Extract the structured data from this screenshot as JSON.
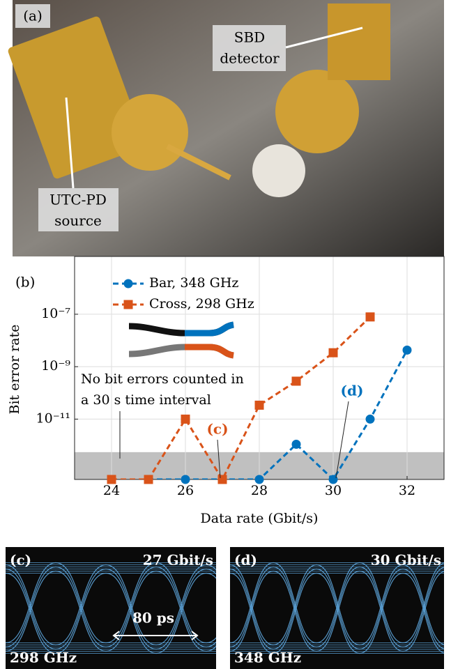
{
  "photo": {
    "label": "(a)",
    "detector_label": [
      "SBD",
      "detector"
    ],
    "source_label": [
      "UTC-PD",
      "source"
    ]
  },
  "chart_data": {
    "type": "line",
    "panel_label": "(b)",
    "x_label": "Data rate (Gbit/s)",
    "y_label": "Bit error rate",
    "xlim": [
      23,
      33
    ],
    "xticks": [
      24,
      26,
      28,
      30,
      32
    ],
    "ylim": [
      5e-14,
      1.6e-05
    ],
    "log_y": true,
    "yticks": [
      {
        "value": 1e-07,
        "label": "10⁻⁷"
      },
      {
        "value": 1e-09,
        "label": "10⁻⁹"
      },
      {
        "value": 1e-11,
        "label": "10⁻¹¹"
      }
    ],
    "grid": true,
    "legend": "upper left",
    "shaded_ylim": [
      5e-14,
      5.5e-13
    ],
    "shade_color": "#c0c0c0",
    "annotation": [
      "No bit errors counted in",
      "a 30 s time interval"
    ],
    "series": [
      {
        "name": "Bar, 348 GHz",
        "color": "#0072bd",
        "marker": "circle",
        "callout": "(d)",
        "x": [
          24,
          25,
          26,
          27,
          28,
          29,
          30,
          31,
          32
        ],
        "values": [
          5e-14,
          5e-14,
          5e-14,
          5e-14,
          5e-14,
          1.1e-12,
          5e-14,
          1e-11,
          4.3e-09
        ]
      },
      {
        "name": "Cross, 298 GHz",
        "color": "#d95319",
        "marker": "square",
        "callout": "(c)",
        "x": [
          24,
          25,
          26,
          27,
          28,
          29,
          30,
          31
        ],
        "values": [
          5e-14,
          5e-14,
          1e-11,
          5e-14,
          3.4e-11,
          2.8e-10,
          3.4e-09,
          7.9e-08
        ]
      }
    ]
  },
  "eye_diagrams": [
    {
      "label": "(c)",
      "rate": "27 Gbit/s",
      "frequency": "298 GHz",
      "scale": "80 ps"
    },
    {
      "label": "(d)",
      "rate": "30 Gbit/s",
      "frequency": "348 GHz"
    }
  ]
}
